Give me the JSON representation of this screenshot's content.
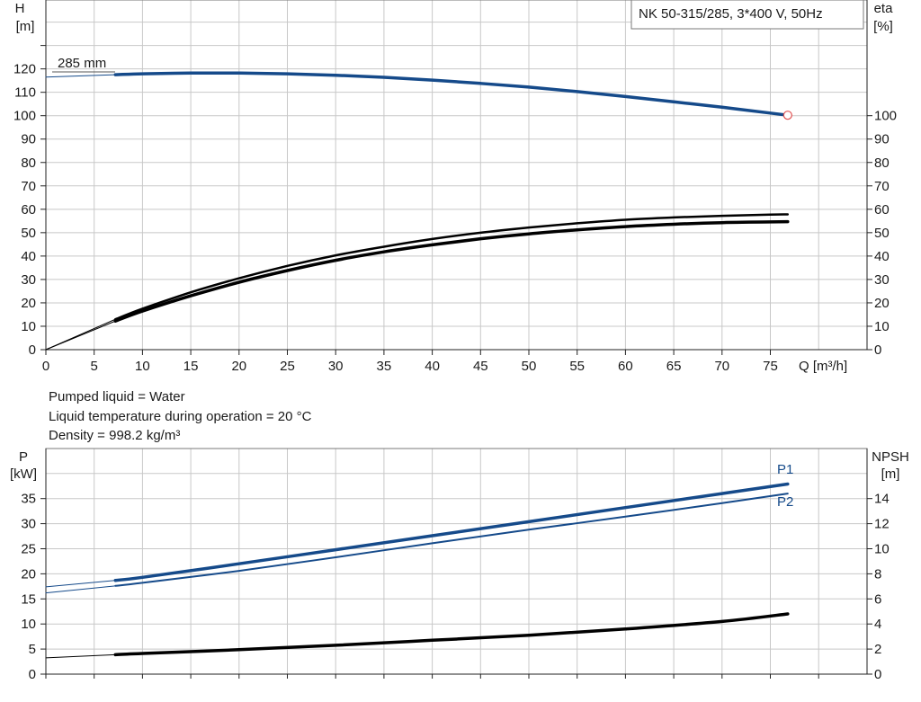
{
  "title_box": "NK 50-315/285, 3*400 V, 50Hz",
  "liquid_info": [
    "Pumped liquid = Water",
    "Liquid temperature during operation = 20 °C",
    "Density = 998.2 kg/m³"
  ],
  "colors": {
    "blue": "#154a8a",
    "black": "#000000",
    "grid": "#c8c8c8",
    "marker": "#e05050"
  },
  "chart_data": [
    {
      "type": "line",
      "name_tag": "head-efficiency",
      "xlabel": "Q [m³/h]",
      "ylabel_left": [
        "H",
        "[m]"
      ],
      "ylabel_right": [
        "eta",
        "[%]"
      ],
      "xlim": [
        0,
        84
      ],
      "xticks": [
        0,
        5,
        10,
        15,
        20,
        25,
        30,
        35,
        40,
        45,
        50,
        55,
        60,
        65,
        70,
        75
      ],
      "ylim_left": [
        0,
        135
      ],
      "yticks_left": [
        0,
        10,
        20,
        30,
        40,
        50,
        60,
        70,
        80,
        90,
        100,
        110,
        120
      ],
      "yticks_right": [
        0,
        10,
        20,
        30,
        40,
        50,
        60,
        70,
        80,
        90,
        100
      ],
      "annotations": [
        {
          "text": "285 mm"
        }
      ],
      "series": [
        {
          "id": "head_ext",
          "color": "blue",
          "width": 1,
          "x": [
            0,
            7.2
          ],
          "y": [
            116.5,
            117.5
          ]
        },
        {
          "id": "head",
          "color": "blue",
          "width": 3.5,
          "x": [
            7.2,
            10,
            15,
            20,
            25,
            30,
            35,
            40,
            45,
            50,
            55,
            60,
            65,
            70,
            75,
            76.8
          ],
          "y": [
            117.5,
            117.9,
            118.2,
            118.2,
            117.9,
            117.3,
            116.4,
            115.2,
            113.8,
            112.2,
            110.3,
            108.2,
            105.9,
            103.6,
            101.1,
            100.2
          ]
        },
        {
          "id": "eta1_ext",
          "color": "black",
          "width": 1,
          "x": [
            0,
            7.2
          ],
          "y": [
            0,
            13.0
          ]
        },
        {
          "id": "eta1",
          "color": "black",
          "width": 2.5,
          "x": [
            7.2,
            10,
            15,
            20,
            25,
            30,
            35,
            40,
            45,
            50,
            55,
            60,
            65,
            70,
            75,
            76.8
          ],
          "y": [
            13.0,
            17.5,
            24.5,
            30.5,
            35.8,
            40.3,
            44.0,
            47.3,
            50.0,
            52.2,
            54.0,
            55.5,
            56.5,
            57.2,
            57.7,
            57.8
          ]
        },
        {
          "id": "eta2_ext",
          "color": "black",
          "width": 1,
          "x": [
            0,
            7.2
          ],
          "y": [
            0,
            12.2
          ]
        },
        {
          "id": "eta2",
          "color": "black",
          "width": 3.5,
          "x": [
            7.2,
            10,
            15,
            20,
            25,
            30,
            35,
            40,
            45,
            50,
            55,
            60,
            65,
            70,
            75,
            76.8
          ],
          "y": [
            12.2,
            16.5,
            23.0,
            28.8,
            33.8,
            38.2,
            41.8,
            44.8,
            47.4,
            49.5,
            51.2,
            52.6,
            53.6,
            54.3,
            54.6,
            54.7
          ]
        }
      ],
      "markers": [
        {
          "x": 76.8,
          "y": 100.2,
          "color": "marker"
        }
      ]
    },
    {
      "type": "line",
      "name_tag": "power-npsh",
      "ylabel_left": [
        "P",
        "[kW]"
      ],
      "ylabel_right": [
        "NPSH",
        "[m]"
      ],
      "xlim": [
        0,
        84
      ],
      "ylim_left": [
        0,
        40
      ],
      "yticks_left": [
        0,
        5,
        10,
        15,
        20,
        25,
        30,
        35
      ],
      "ylim_right": [
        0,
        16
      ],
      "yticks_right": [
        0,
        2,
        4,
        6,
        8,
        10,
        12,
        14
      ],
      "series": [
        {
          "id": "p1_ext",
          "name": "",
          "color": "blue",
          "width": 1,
          "axis": "left",
          "x": [
            0,
            7.2
          ],
          "y": [
            17.4,
            18.7
          ]
        },
        {
          "id": "p1",
          "name": "P1",
          "color": "blue",
          "width": 3.5,
          "axis": "left",
          "x": [
            7.2,
            10,
            20,
            30,
            40,
            50,
            60,
            70,
            76.8
          ],
          "y": [
            18.7,
            19.3,
            22.0,
            24.8,
            27.6,
            30.4,
            33.2,
            36.0,
            37.9
          ]
        },
        {
          "id": "p2_ext",
          "name": "",
          "color": "blue",
          "width": 1,
          "axis": "left",
          "x": [
            0,
            7.2
          ],
          "y": [
            16.2,
            17.6
          ]
        },
        {
          "id": "p2",
          "name": "P2",
          "color": "blue",
          "width": 2,
          "axis": "left",
          "x": [
            7.2,
            10,
            20,
            30,
            40,
            50,
            60,
            70,
            76.8
          ],
          "y": [
            17.6,
            18.2,
            20.6,
            23.3,
            26.1,
            28.8,
            31.4,
            34.1,
            36.0
          ]
        },
        {
          "id": "npsh_ext",
          "name": "",
          "color": "black",
          "width": 1,
          "axis": "right",
          "x": [
            0,
            7.2
          ],
          "y": [
            1.3,
            1.55
          ]
        },
        {
          "id": "npsh",
          "name": "",
          "color": "black",
          "width": 3.5,
          "axis": "right",
          "x": [
            7.2,
            10,
            20,
            30,
            40,
            50,
            60,
            70,
            76.8
          ],
          "y": [
            1.55,
            1.65,
            1.95,
            2.3,
            2.7,
            3.1,
            3.6,
            4.2,
            4.8
          ]
        }
      ]
    }
  ]
}
